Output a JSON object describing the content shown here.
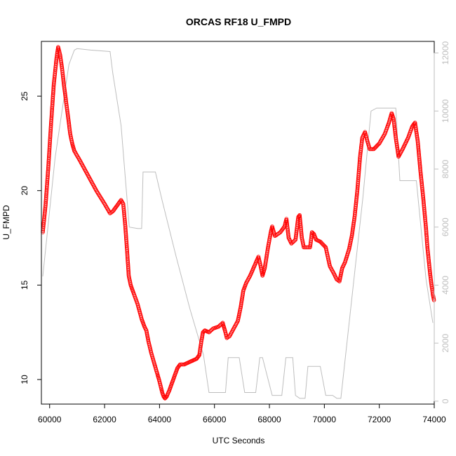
{
  "chart_data": {
    "type": "line",
    "title": "ORCAS RF18 U_FMPD",
    "xlabel": "UTC Seconds",
    "ylabel": "U_FMPD",
    "xlim": [
      59700,
      74000
    ],
    "ylim": [
      8.7,
      27.9
    ],
    "y2lim": [
      -100,
      12400
    ],
    "x_ticks": [
      60000,
      62000,
      64000,
      66000,
      68000,
      70000,
      72000,
      74000
    ],
    "y_ticks": [
      10,
      15,
      20,
      25
    ],
    "y2_ticks": [
      0,
      2000,
      4000,
      6000,
      8000,
      10000,
      12000
    ],
    "colors": {
      "primary": "#ff0000",
      "secondary": "#bebebe",
      "axis": "#000000"
    },
    "series": [
      {
        "role": "primary",
        "style": "points",
        "axis": "left",
        "points": [
          [
            59750,
            17.8
          ],
          [
            59850,
            19.2
          ],
          [
            59950,
            21.2
          ],
          [
            60050,
            23.5
          ],
          [
            60150,
            25.6
          ],
          [
            60250,
            27.0
          ],
          [
            60310,
            27.6
          ],
          [
            60380,
            27.2
          ],
          [
            60450,
            26.5
          ],
          [
            60520,
            25.6
          ],
          [
            60600,
            24.7
          ],
          [
            60680,
            23.8
          ],
          [
            60750,
            23.0
          ],
          [
            60820,
            22.5
          ],
          [
            60900,
            22.1
          ],
          [
            61100,
            21.6
          ],
          [
            61400,
            20.8
          ],
          [
            61700,
            20.0
          ],
          [
            62000,
            19.3
          ],
          [
            62200,
            18.8
          ],
          [
            62300,
            18.9
          ],
          [
            62450,
            19.2
          ],
          [
            62600,
            19.5
          ],
          [
            62680,
            19.3
          ],
          [
            62750,
            18.2
          ],
          [
            62820,
            16.8
          ],
          [
            62880,
            15.5
          ],
          [
            62950,
            15.0
          ],
          [
            63050,
            14.6
          ],
          [
            63200,
            14.0
          ],
          [
            63350,
            13.2
          ],
          [
            63450,
            12.8
          ],
          [
            63520,
            12.6
          ],
          [
            63600,
            12.0
          ],
          [
            63700,
            11.4
          ],
          [
            63800,
            10.9
          ],
          [
            63900,
            10.4
          ],
          [
            63980,
            10.0
          ],
          [
            64050,
            9.6
          ],
          [
            64100,
            9.3
          ],
          [
            64150,
            9.1
          ],
          [
            64200,
            9.0
          ],
          [
            64260,
            9.1
          ],
          [
            64350,
            9.4
          ],
          [
            64450,
            9.8
          ],
          [
            64550,
            10.2
          ],
          [
            64650,
            10.6
          ],
          [
            64750,
            10.8
          ],
          [
            64900,
            10.8
          ],
          [
            65050,
            10.9
          ],
          [
            65200,
            11.0
          ],
          [
            65350,
            11.1
          ],
          [
            65450,
            11.3
          ],
          [
            65520,
            12.0
          ],
          [
            65580,
            12.5
          ],
          [
            65650,
            12.6
          ],
          [
            65800,
            12.5
          ],
          [
            65950,
            12.7
          ],
          [
            66150,
            12.8
          ],
          [
            66300,
            13.0
          ],
          [
            66380,
            12.6
          ],
          [
            66450,
            12.2
          ],
          [
            66550,
            12.3
          ],
          [
            66700,
            12.7
          ],
          [
            66850,
            13.1
          ],
          [
            66950,
            13.8
          ],
          [
            67050,
            14.7
          ],
          [
            67150,
            15.1
          ],
          [
            67300,
            15.5
          ],
          [
            67450,
            16.0
          ],
          [
            67600,
            16.5
          ],
          [
            67680,
            16.0
          ],
          [
            67750,
            15.5
          ],
          [
            67830,
            15.9
          ],
          [
            67950,
            17.0
          ],
          [
            68050,
            17.8
          ],
          [
            68100,
            18.1
          ],
          [
            68200,
            17.6
          ],
          [
            68400,
            17.8
          ],
          [
            68550,
            18.1
          ],
          [
            68620,
            18.5
          ],
          [
            68700,
            17.5
          ],
          [
            68800,
            17.2
          ],
          [
            68950,
            17.4
          ],
          [
            69050,
            18.6
          ],
          [
            69100,
            18.7
          ],
          [
            69180,
            17.5
          ],
          [
            69250,
            17.0
          ],
          [
            69400,
            17.0
          ],
          [
            69480,
            17.0
          ],
          [
            69550,
            17.8
          ],
          [
            69620,
            17.7
          ],
          [
            69700,
            17.4
          ],
          [
            69850,
            17.3
          ],
          [
            70050,
            17.0
          ],
          [
            70200,
            16.0
          ],
          [
            70350,
            15.6
          ],
          [
            70450,
            15.3
          ],
          [
            70550,
            15.2
          ],
          [
            70650,
            15.9
          ],
          [
            70750,
            16.2
          ],
          [
            70900,
            16.9
          ],
          [
            71000,
            17.6
          ],
          [
            71100,
            18.6
          ],
          [
            71200,
            20.0
          ],
          [
            71300,
            21.8
          ],
          [
            71380,
            22.8
          ],
          [
            71480,
            23.1
          ],
          [
            71550,
            22.7
          ],
          [
            71650,
            22.2
          ],
          [
            71800,
            22.2
          ],
          [
            72000,
            22.5
          ],
          [
            72200,
            23.0
          ],
          [
            72350,
            23.6
          ],
          [
            72450,
            24.1
          ],
          [
            72520,
            23.8
          ],
          [
            72600,
            22.8
          ],
          [
            72700,
            21.8
          ],
          [
            72850,
            22.2
          ],
          [
            73050,
            22.8
          ],
          [
            73200,
            23.4
          ],
          [
            73300,
            23.6
          ],
          [
            73400,
            22.6
          ],
          [
            73500,
            21.0
          ],
          [
            73600,
            19.6
          ],
          [
            73700,
            18.0
          ],
          [
            73750,
            17.0
          ],
          [
            73800,
            16.3
          ],
          [
            73850,
            15.6
          ],
          [
            73900,
            15.0
          ],
          [
            73950,
            14.5
          ],
          [
            73990,
            14.2
          ]
        ]
      },
      {
        "role": "secondary",
        "style": "line",
        "axis": "right",
        "points": [
          [
            59750,
            4300
          ],
          [
            60200,
            8400
          ],
          [
            60700,
            11600
          ],
          [
            60900,
            12100
          ],
          [
            61000,
            12150
          ],
          [
            61500,
            12100
          ],
          [
            62200,
            12050
          ],
          [
            62300,
            11300
          ],
          [
            62600,
            9500
          ],
          [
            62900,
            6000
          ],
          [
            63200,
            5950
          ],
          [
            63350,
            5950
          ],
          [
            63400,
            7900
          ],
          [
            63850,
            7900
          ],
          [
            64100,
            6900
          ],
          [
            64600,
            5000
          ],
          [
            65100,
            3200
          ],
          [
            65600,
            1600
          ],
          [
            65800,
            300
          ],
          [
            66400,
            300
          ],
          [
            66500,
            1500
          ],
          [
            66900,
            1500
          ],
          [
            67100,
            300
          ],
          [
            67500,
            300
          ],
          [
            67650,
            1500
          ],
          [
            67750,
            1500
          ],
          [
            68100,
            200
          ],
          [
            68450,
            200
          ],
          [
            68600,
            1500
          ],
          [
            68850,
            1500
          ],
          [
            68950,
            200
          ],
          [
            69100,
            100
          ],
          [
            69300,
            100
          ],
          [
            69400,
            1200
          ],
          [
            69850,
            1200
          ],
          [
            70050,
            200
          ],
          [
            70300,
            200
          ],
          [
            70450,
            100
          ],
          [
            70600,
            100
          ],
          [
            71400,
            7000
          ],
          [
            71700,
            10000
          ],
          [
            71900,
            10100
          ],
          [
            72100,
            10100
          ],
          [
            72600,
            10100
          ],
          [
            72750,
            7600
          ],
          [
            73350,
            7600
          ],
          [
            73700,
            4200
          ],
          [
            73950,
            2700
          ]
        ]
      }
    ]
  }
}
